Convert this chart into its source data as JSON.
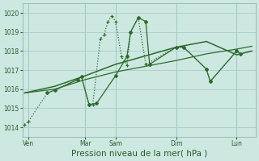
{
  "background_color": "#cce8e0",
  "grid_color": "#aacccc",
  "line_color": "#2d6a2d",
  "xlabel": "Pression niveau de la mer( hPa )",
  "xlabel_fontsize": 7.5,
  "ylim": [
    1013.5,
    1020.5
  ],
  "yticks": [
    1014,
    1015,
    1016,
    1017,
    1018,
    1019,
    1020
  ],
  "xlim": [
    -0.3,
    30.5
  ],
  "xtick_labels": [
    "Ven",
    "Mar",
    "Sam",
    "Dim",
    "Lun"
  ],
  "xtick_positions": [
    0.5,
    8,
    12,
    20,
    28
  ],
  "vline_positions": [
    0.5,
    8,
    12,
    20,
    28
  ],
  "series": [
    {
      "name": "dotted_plus",
      "x": [
        0,
        0.5,
        3,
        4,
        7,
        7.5,
        8.5,
        9,
        10,
        10.5,
        11,
        11.5,
        12,
        12.8,
        13.5,
        14,
        15,
        16,
        20,
        21,
        24,
        24.5,
        28,
        28.5
      ],
      "y": [
        1014.15,
        1014.3,
        1015.8,
        1015.95,
        1016.5,
        1016.65,
        1015.2,
        1015.2,
        1018.65,
        1018.85,
        1019.55,
        1019.85,
        1019.55,
        1017.7,
        1017.25,
        1019.0,
        1019.75,
        1017.3,
        1018.2,
        1018.2,
        1017.05,
        1016.4,
        1018.0,
        1017.85
      ],
      "linestyle": ":",
      "marker": "+",
      "lw": 0.9,
      "ms": 3.5
    },
    {
      "name": "solid_upper",
      "x": [
        0,
        4,
        8,
        12,
        16,
        20,
        24,
        28,
        30
      ],
      "y": [
        1015.8,
        1016.15,
        1016.7,
        1017.3,
        1017.75,
        1018.2,
        1018.5,
        1017.8,
        1018.0
      ],
      "linestyle": "-",
      "marker": null,
      "lw": 1.1
    },
    {
      "name": "solid_lower",
      "x": [
        0,
        4,
        8,
        12,
        16,
        20,
        24,
        28,
        30
      ],
      "y": [
        1015.8,
        1016.0,
        1016.5,
        1016.9,
        1017.2,
        1017.5,
        1017.85,
        1018.1,
        1018.25
      ],
      "linestyle": "-",
      "marker": null,
      "lw": 0.9
    },
    {
      "name": "solid_diamond",
      "x": [
        3,
        4,
        7,
        7.5,
        8.5,
        9.5,
        12,
        13.5,
        14,
        15,
        16,
        16.5,
        20,
        21,
        24,
        24.5,
        28,
        28.5
      ],
      "y": [
        1015.8,
        1015.95,
        1016.5,
        1016.65,
        1015.2,
        1015.25,
        1016.7,
        1017.7,
        1019.0,
        1019.75,
        1019.55,
        1017.3,
        1018.2,
        1018.2,
        1017.05,
        1016.4,
        1018.0,
        1017.85
      ],
      "linestyle": "-",
      "marker": "D",
      "lw": 0.9,
      "ms": 2.0
    }
  ]
}
